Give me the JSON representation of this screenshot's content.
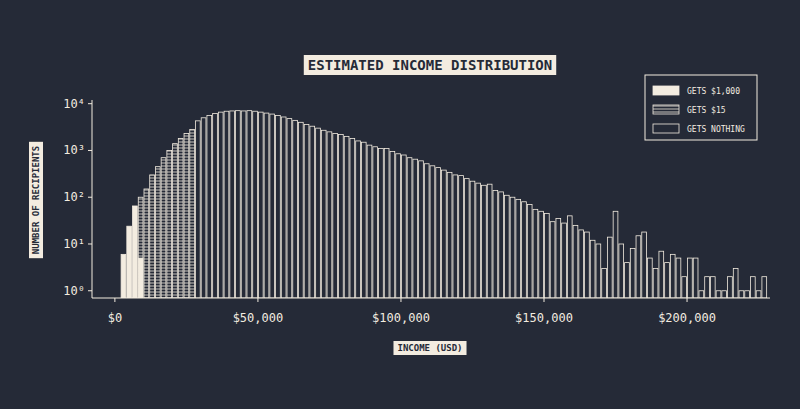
{
  "chart_data": {
    "type": "histogram",
    "title": "ESTIMATED INCOME DISTRIBUTION",
    "x_label": "INCOME (USD)",
    "y_label": "NUMBER OF RECIPIENTS",
    "log": "y",
    "legend": "upper right",
    "xlim": [
      -8000,
      229000
    ],
    "ylim": [
      0.7,
      12000
    ],
    "xticks": [
      {
        "value": 0,
        "label": "$0"
      },
      {
        "value": 50000,
        "label": "$50,000"
      },
      {
        "value": 100000,
        "label": "$100,000"
      },
      {
        "value": 150000,
        "label": "$150,000"
      },
      {
        "value": 200000,
        "label": "$200,000"
      }
    ],
    "yticks": [
      {
        "value": 1,
        "label": "10⁰"
      },
      {
        "value": 10,
        "label": "10¹"
      },
      {
        "value": 100,
        "label": "10²"
      },
      {
        "value": 1000,
        "label": "10³"
      },
      {
        "value": 10000,
        "label": "10⁴"
      }
    ],
    "bins": [
      2000,
      4000,
      6000,
      8000,
      10000,
      12000,
      14000,
      16000,
      18000,
      20000,
      22000,
      24000,
      26000,
      28000,
      30000,
      32000,
      34000,
      36000,
      38000,
      40000,
      42000,
      44000,
      46000,
      48000,
      50000,
      52000,
      54000,
      56000,
      58000,
      60000,
      62000,
      64000,
      66000,
      68000,
      70000,
      72000,
      74000,
      76000,
      78000,
      80000,
      82000,
      84000,
      86000,
      88000,
      90000,
      92000,
      94000,
      96000,
      98000,
      100000,
      102000,
      104000,
      106000,
      108000,
      110000,
      112000,
      114000,
      116000,
      118000,
      120000,
      122000,
      124000,
      126000,
      128000,
      130000,
      132000,
      134000,
      136000,
      138000,
      140000,
      142000,
      144000,
      146000,
      148000,
      150000,
      152000,
      154000,
      156000,
      158000,
      160000,
      162000,
      164000,
      166000,
      168000,
      170000,
      172000,
      174000,
      176000,
      178000,
      180000,
      182000,
      184000,
      186000,
      188000,
      190000,
      192000,
      194000,
      196000,
      198000,
      200000,
      202000,
      204000,
      206000,
      208000,
      210000,
      212000,
      214000,
      216000,
      218000,
      220000,
      222000,
      224000,
      226000,
      228000
    ],
    "series": [
      {
        "name": "GETS NOTHING",
        "color": "#f3ece0",
        "marker": "outline",
        "values": [
          null,
          null,
          null,
          null,
          null,
          null,
          null,
          null,
          null,
          null,
          null,
          null,
          null,
          4300,
          5000,
          5600,
          6200,
          6600,
          6900,
          7000,
          7100,
          7000,
          7100,
          6900,
          6600,
          6300,
          6000,
          5600,
          5200,
          4800,
          4400,
          4000,
          3600,
          3300,
          3000,
          2700,
          2500,
          2300,
          2200,
          2000,
          1800,
          1600,
          1500,
          1300,
          1200,
          1100,
          1100,
          950,
          850,
          800,
          700,
          650,
          600,
          520,
          470,
          430,
          380,
          340,
          300,
          290,
          250,
          220,
          200,
          180,
          190,
          140,
          130,
          110,
          100,
          90,
          80,
          70,
          55,
          50,
          45,
          30,
          35,
          28,
          40,
          25,
          20,
          18,
          12,
          10,
          3,
          14,
          50,
          10,
          4,
          8,
          15,
          18,
          5,
          3,
          7,
          4,
          6,
          5,
          2,
          5,
          5,
          1,
          2,
          2,
          1,
          1,
          2,
          3,
          1,
          1,
          2,
          1,
          2
        ]
      },
      {
        "name": "GETS $15",
        "color": "#f3ece0",
        "marker": "hatched",
        "values": [
          null,
          null,
          null,
          100,
          150,
          300,
          450,
          700,
          1000,
          1400,
          1800,
          2300,
          2800,
          null,
          null,
          null,
          null,
          null,
          null,
          null,
          null,
          null,
          null,
          null,
          null,
          null,
          null,
          null,
          null,
          null,
          null,
          null,
          null,
          null,
          null,
          null,
          null,
          null,
          null,
          null,
          null,
          null,
          null,
          null,
          null,
          null,
          null,
          null,
          null,
          null,
          null,
          null,
          null,
          null,
          null,
          null,
          null,
          null,
          null,
          null,
          null,
          null,
          null,
          null,
          null,
          null,
          null,
          null,
          null,
          null,
          null,
          null,
          null,
          null,
          null,
          null,
          null,
          null,
          null,
          null,
          null,
          null,
          null,
          null,
          null,
          null,
          null,
          null,
          null,
          null,
          null,
          null,
          null,
          null,
          null,
          null,
          null,
          null,
          null,
          null,
          null,
          null,
          null,
          null,
          null,
          null,
          null,
          null,
          null,
          null,
          null,
          null,
          null
        ]
      },
      {
        "name": "GETS $1,000",
        "color": "#f3ece0",
        "marker": "filled",
        "values": [
          6,
          24,
          65,
          5,
          null,
          null,
          null,
          null,
          null,
          null,
          null,
          null,
          null,
          null,
          null,
          null,
          null,
          null,
          null,
          null,
          null,
          null,
          null,
          null,
          null,
          null,
          null,
          null,
          null,
          null,
          null,
          null,
          null,
          null,
          null,
          null,
          null,
          null,
          null,
          null,
          null,
          null,
          null,
          null,
          null,
          null,
          null,
          null,
          null,
          null,
          null,
          null,
          null,
          null,
          null,
          null,
          null,
          null,
          null,
          null,
          null,
          null,
          null,
          null,
          null,
          null,
          null,
          null,
          null,
          null,
          null,
          null,
          null,
          null,
          null,
          null,
          null,
          null,
          null,
          null,
          null,
          null,
          null,
          null,
          null,
          null,
          null,
          null,
          null,
          null,
          null,
          null,
          null,
          null,
          null,
          null,
          null,
          null,
          null,
          null,
          null,
          null,
          null,
          null,
          null,
          null,
          null,
          null,
          null,
          null,
          null,
          null,
          null
        ]
      }
    ]
  }
}
